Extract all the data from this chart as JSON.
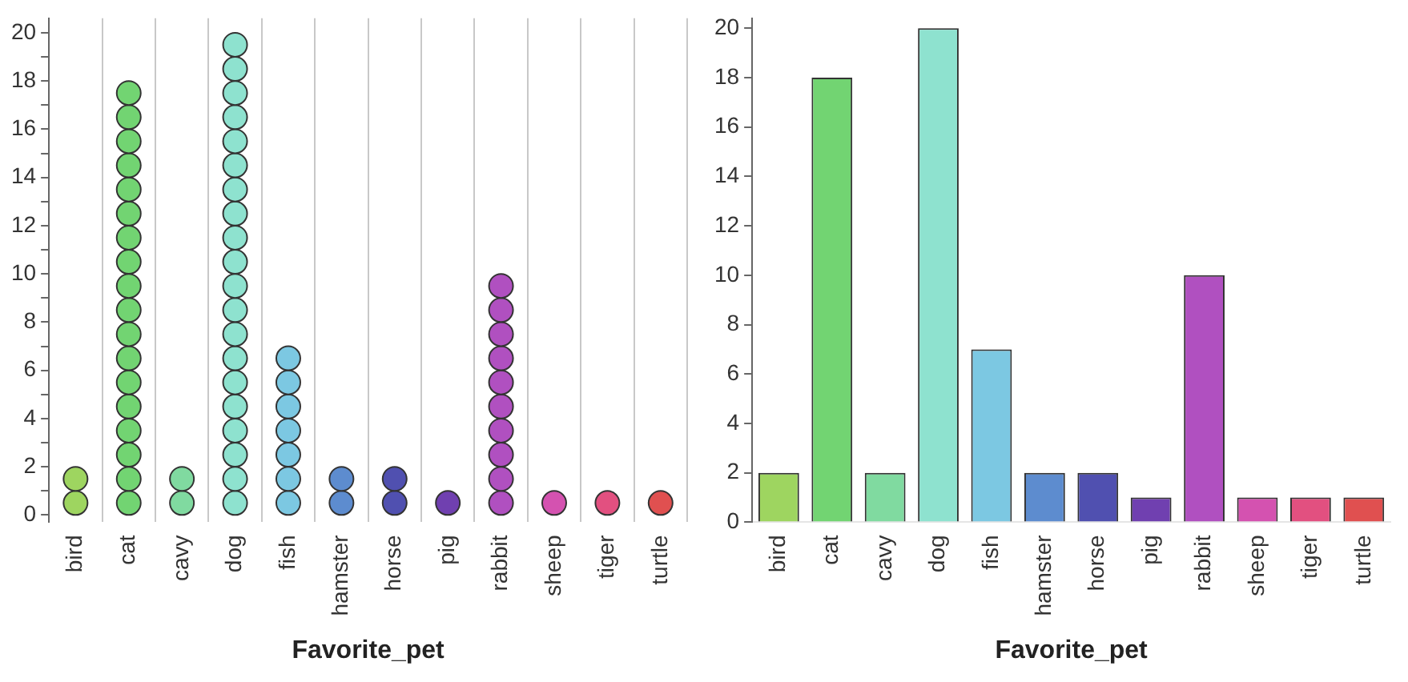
{
  "chart_data": [
    {
      "type": "scatter",
      "xlabel": "Favorite_pet",
      "marker": "circle",
      "grid": "x",
      "legend": false,
      "categories": [
        "bird",
        "cat",
        "cavy",
        "dog",
        "fish",
        "hamster",
        "horse",
        "pig",
        "rabbit",
        "sheep",
        "tiger",
        "turtle"
      ],
      "ylim": [
        -0.3,
        20.6
      ],
      "yticks": [
        0,
        {
          "value": 1,
          "label": null
        },
        2,
        {
          "value": 3,
          "label": null
        },
        4,
        {
          "value": 5,
          "label": null
        },
        6,
        {
          "value": 7,
          "label": null
        },
        8,
        {
          "value": 9,
          "label": null
        },
        10,
        {
          "value": 11,
          "label": null
        },
        12,
        {
          "value": 13,
          "label": null
        },
        14,
        {
          "value": 15,
          "label": null
        },
        16,
        {
          "value": 17,
          "label": null
        },
        18,
        {
          "value": 19,
          "label": null
        },
        20
      ],
      "series": [
        {
          "color": "#9ed560",
          "x": [
            "bird",
            "bird"
          ],
          "values": [
            0.5,
            1.5
          ]
        },
        {
          "color": "#72d472",
          "x": [
            "cat",
            "cat",
            "cat",
            "cat",
            "cat",
            "cat",
            "cat",
            "cat",
            "cat",
            "cat",
            "cat",
            "cat",
            "cat",
            "cat",
            "cat",
            "cat",
            "cat",
            "cat"
          ],
          "values": [
            0.5,
            1.5,
            2.5,
            3.5,
            4.5,
            5.5,
            6.5,
            7.5,
            8.5,
            9.5,
            10.5,
            11.5,
            12.5,
            13.5,
            14.5,
            15.5,
            16.5,
            17.5
          ]
        },
        {
          "color": "#80daa0",
          "x": [
            "cavy",
            "cavy"
          ],
          "values": [
            0.5,
            1.5
          ]
        },
        {
          "color": "#8ee2cf",
          "x": [
            "dog",
            "dog",
            "dog",
            "dog",
            "dog",
            "dog",
            "dog",
            "dog",
            "dog",
            "dog",
            "dog",
            "dog",
            "dog",
            "dog",
            "dog",
            "dog",
            "dog",
            "dog",
            "dog",
            "dog"
          ],
          "values": [
            0.5,
            1.5,
            2.5,
            3.5,
            4.5,
            5.5,
            6.5,
            7.5,
            8.5,
            9.5,
            10.5,
            11.5,
            12.5,
            13.5,
            14.5,
            15.5,
            16.5,
            17.5,
            18.5,
            19.5
          ]
        },
        {
          "color": "#7cc8e2",
          "x": [
            "fish",
            "fish",
            "fish",
            "fish",
            "fish",
            "fish",
            "fish"
          ],
          "values": [
            0.5,
            1.5,
            2.5,
            3.5,
            4.5,
            5.5,
            6.5
          ]
        },
        {
          "color": "#5d8ccf",
          "x": [
            "hamster",
            "hamster"
          ],
          "values": [
            0.5,
            1.5
          ]
        },
        {
          "color": "#5050b0",
          "x": [
            "horse",
            "horse"
          ],
          "values": [
            0.5,
            1.5
          ]
        },
        {
          "color": "#7040b0",
          "x": [
            "pig"
          ],
          "values": [
            0.5
          ]
        },
        {
          "color": "#b050c0",
          "x": [
            "rabbit",
            "rabbit",
            "rabbit",
            "rabbit",
            "rabbit",
            "rabbit",
            "rabbit",
            "rabbit",
            "rabbit",
            "rabbit"
          ],
          "values": [
            0.5,
            1.5,
            2.5,
            3.5,
            4.5,
            5.5,
            6.5,
            7.5,
            8.5,
            9.5
          ]
        },
        {
          "color": "#d452b0",
          "x": [
            "sheep"
          ],
          "values": [
            0.5
          ]
        },
        {
          "color": "#e25080",
          "x": [
            "tiger"
          ],
          "values": [
            0.5
          ]
        },
        {
          "color": "#e05050",
          "x": [
            "turtle"
          ],
          "values": [
            0.5
          ]
        }
      ]
    },
    {
      "type": "bar",
      "xlabel": "Favorite_pet",
      "grid": false,
      "legend": false,
      "categories": [
        "bird",
        "cat",
        "cavy",
        "dog",
        "fish",
        "hamster",
        "horse",
        "pig",
        "rabbit",
        "sheep",
        "tiger",
        "turtle"
      ],
      "values": [
        2,
        18,
        2,
        20,
        7,
        2,
        2,
        1,
        10,
        1,
        1,
        1
      ],
      "colors": [
        "#9ed560",
        "#72d472",
        "#80daa0",
        "#8ee2cf",
        "#7cc8e2",
        "#5d8ccf",
        "#5050b0",
        "#7040b0",
        "#b050c0",
        "#d452b0",
        "#e25080",
        "#e05050"
      ],
      "ylim": [
        0,
        20.4
      ],
      "yticks": [
        0,
        2,
        4,
        6,
        8,
        10,
        12,
        14,
        16,
        18,
        20
      ]
    }
  ]
}
